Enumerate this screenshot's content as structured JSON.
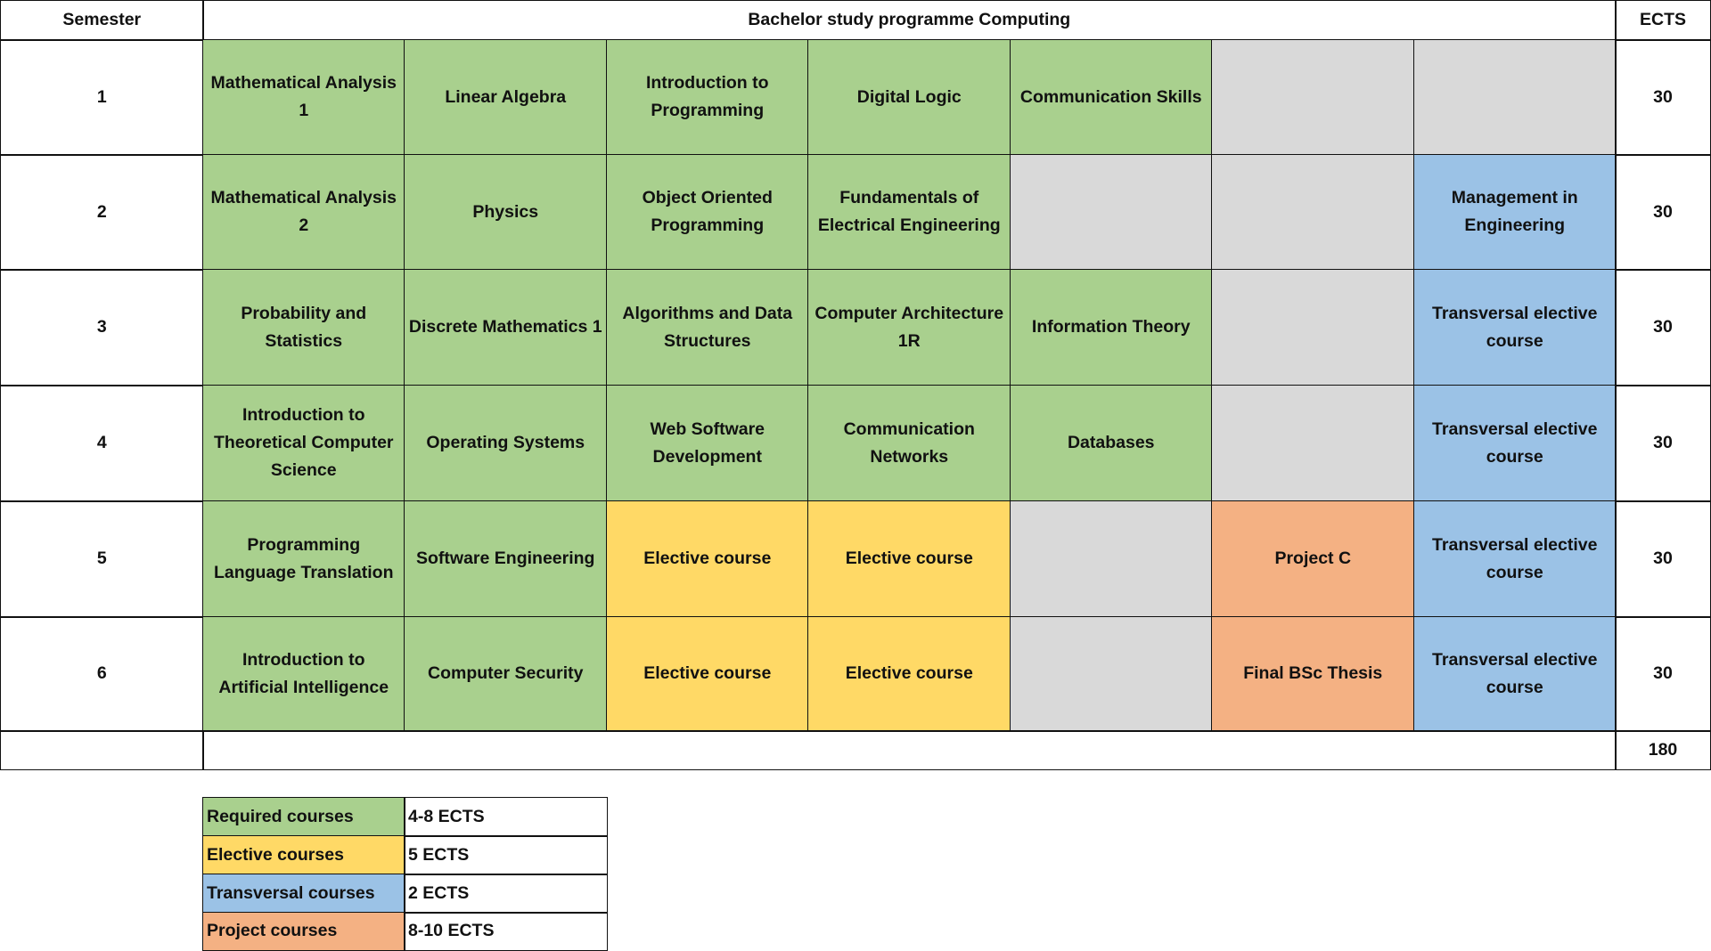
{
  "header": {
    "semester": "Semester",
    "title": "Bachelor study programme Computing",
    "ects": "ECTS"
  },
  "colors": {
    "required": "#a9d08e",
    "elective": "#ffd966",
    "transversal": "#9bc2e6",
    "project": "#f4b183",
    "empty": "#d9d9d9"
  },
  "rows": [
    {
      "semester": "1",
      "ects": "30",
      "courses": [
        {
          "name": "Mathematical Analysis 1",
          "type": "required"
        },
        {
          "name": "Linear Algebra",
          "type": "required"
        },
        {
          "name": "Introduction to Programming",
          "type": "required"
        },
        {
          "name": "Digital Logic",
          "type": "required"
        },
        {
          "name": "Communication Skills",
          "type": "required"
        },
        {
          "name": "",
          "type": "empty"
        },
        {
          "name": "",
          "type": "empty"
        }
      ]
    },
    {
      "semester": "2",
      "ects": "30",
      "courses": [
        {
          "name": "Mathematical Analysis 2",
          "type": "required"
        },
        {
          "name": "Physics",
          "type": "required"
        },
        {
          "name": "Object Oriented Programming",
          "type": "required"
        },
        {
          "name": "Fundamentals of Electrical Engineering",
          "type": "required"
        },
        {
          "name": "",
          "type": "empty"
        },
        {
          "name": "",
          "type": "empty"
        },
        {
          "name": "Management in Engineering",
          "type": "transversal"
        }
      ]
    },
    {
      "semester": "3",
      "ects": "30",
      "courses": [
        {
          "name": "Probability and Statistics",
          "type": "required"
        },
        {
          "name": "Discrete Mathematics 1",
          "type": "required"
        },
        {
          "name": "Algorithms and Data Structures",
          "type": "required"
        },
        {
          "name": "Computer Architecture 1R",
          "type": "required"
        },
        {
          "name": "Information Theory",
          "type": "required"
        },
        {
          "name": "",
          "type": "empty"
        },
        {
          "name": "Transversal elective course",
          "type": "transversal"
        }
      ]
    },
    {
      "semester": "4",
      "ects": "30",
      "courses": [
        {
          "name": "Introduction to Theoretical Computer Science",
          "type": "required"
        },
        {
          "name": "Operating Systems",
          "type": "required"
        },
        {
          "name": "Web Software Development",
          "type": "required"
        },
        {
          "name": "Communication Networks",
          "type": "required"
        },
        {
          "name": "Databases",
          "type": "required"
        },
        {
          "name": "",
          "type": "empty"
        },
        {
          "name": "Transversal elective course",
          "type": "transversal"
        }
      ]
    },
    {
      "semester": "5",
      "ects": "30",
      "courses": [
        {
          "name": "Programming Language Translation",
          "type": "required"
        },
        {
          "name": "Software Engineering",
          "type": "required"
        },
        {
          "name": "Elective course",
          "type": "elective"
        },
        {
          "name": "Elective course",
          "type": "elective"
        },
        {
          "name": "",
          "type": "empty"
        },
        {
          "name": "Project C",
          "type": "project"
        },
        {
          "name": "Transversal elective course",
          "type": "transversal"
        }
      ]
    },
    {
      "semester": "6",
      "ects": "30",
      "courses": [
        {
          "name": "Introduction to Artificial Intelligence",
          "type": "required"
        },
        {
          "name": "Computer Security",
          "type": "required"
        },
        {
          "name": "Elective course",
          "type": "elective"
        },
        {
          "name": "Elective course",
          "type": "elective"
        },
        {
          "name": "",
          "type": "empty"
        },
        {
          "name": "Final BSc Thesis",
          "type": "project"
        },
        {
          "name": "Transversal elective course",
          "type": "transversal"
        }
      ]
    }
  ],
  "total": {
    "semester": "",
    "ects": "180"
  },
  "legend": [
    {
      "label": "Required courses",
      "value": "4-8 ECTS",
      "type": "required"
    },
    {
      "label": "Elective courses",
      "value": "5 ECTS",
      "type": "elective"
    },
    {
      "label": "Transversal courses",
      "value": "2 ECTS",
      "type": "transversal"
    },
    {
      "label": "Project courses",
      "value": "8-10 ECTS",
      "type": "project"
    }
  ]
}
